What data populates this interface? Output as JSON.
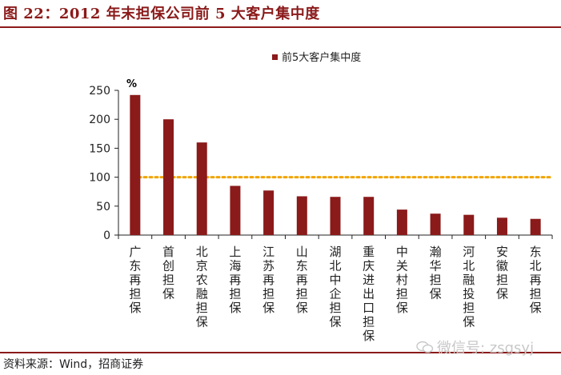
{
  "title": "图 22：2012 年末担保公司前 5 大客户集中度",
  "source": "资料来源：Wind，招商证券",
  "watermark": "微信号: zsgsyj",
  "colors": {
    "bar": "#8b1a1a",
    "reference_line": "#f0a500",
    "accent": "#8b1a1a"
  },
  "chart_data": {
    "type": "bar",
    "title": "",
    "ylabel": "%",
    "xlabel": "",
    "ylim": [
      0,
      250
    ],
    "yticks": [
      0,
      50,
      100,
      150,
      200,
      250
    ],
    "categories": [
      "广东再担保",
      "首创担保",
      "北京农融担保",
      "上海再担保",
      "江苏再担保",
      "山东再担保",
      "湖北中企担保",
      "重庆进出口担保",
      "中关村担保",
      "瀚华担保",
      "河北融投担保",
      "安徽担保",
      "东北再担保"
    ],
    "series": [
      {
        "name": "前5大客户集中度",
        "values": [
          242,
          200,
          160,
          85,
          77,
          67,
          66,
          66,
          44,
          37,
          35,
          30,
          28
        ]
      }
    ],
    "reference_line": {
      "value": 100,
      "style": "dotted"
    },
    "legend": {
      "position": "top"
    },
    "grid": false
  }
}
